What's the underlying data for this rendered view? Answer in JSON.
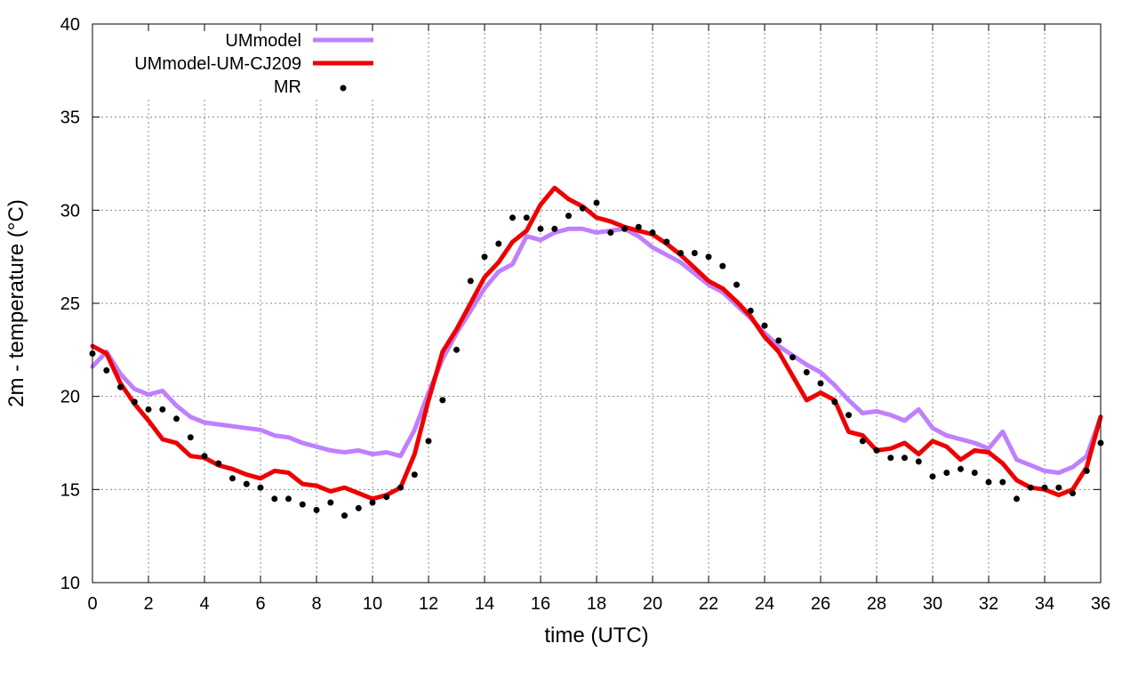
{
  "chart_data": {
    "type": "line",
    "title": "",
    "xlabel": "time (UTC)",
    "ylabel": "2m - temperature (°C)",
    "xlim": [
      0,
      36
    ],
    "ylim": [
      10,
      40
    ],
    "xticks": [
      0,
      2,
      4,
      6,
      8,
      10,
      12,
      14,
      16,
      18,
      20,
      22,
      24,
      26,
      28,
      30,
      32,
      34,
      36
    ],
    "yticks": [
      10,
      15,
      20,
      25,
      30,
      35,
      40
    ],
    "grid": true,
    "legend_position": "top-left",
    "series": [
      {
        "name": "UMmodel",
        "style": "line",
        "color": "#bf80ff",
        "x": [
          0,
          0.5,
          1,
          1.5,
          2,
          2.5,
          3,
          3.5,
          4,
          4.5,
          5,
          5.5,
          6,
          6.5,
          7,
          7.5,
          8,
          8.5,
          9,
          9.5,
          10,
          10.5,
          11,
          11.5,
          12,
          12.5,
          13,
          13.5,
          14,
          14.5,
          15,
          15.5,
          16,
          16.5,
          17,
          17.5,
          18,
          18.5,
          19,
          19.5,
          20,
          20.5,
          21,
          21.5,
          22,
          22.5,
          23,
          23.5,
          24,
          24.5,
          25,
          25.5,
          26,
          26.5,
          27,
          27.5,
          28,
          28.5,
          29,
          29.5,
          30,
          30.5,
          31,
          31.5,
          32,
          32.5,
          33,
          33.5,
          34,
          34.5,
          35,
          35.5,
          36
        ],
        "y": [
          21.6,
          22.4,
          21.2,
          20.4,
          20.1,
          20.3,
          19.5,
          18.9,
          18.6,
          18.5,
          18.4,
          18.3,
          18.2,
          17.9,
          17.8,
          17.5,
          17.3,
          17.1,
          17.0,
          17.1,
          16.9,
          17.0,
          16.8,
          18.2,
          20.2,
          22.0,
          23.4,
          24.6,
          25.8,
          26.7,
          27.1,
          28.6,
          28.4,
          28.8,
          29.0,
          29.0,
          28.8,
          28.9,
          29.0,
          28.6,
          28.0,
          27.6,
          27.2,
          26.6,
          26.0,
          25.6,
          24.9,
          24.2,
          23.4,
          22.7,
          22.2,
          21.7,
          21.3,
          20.6,
          19.8,
          19.1,
          19.2,
          19.0,
          18.7,
          19.3,
          18.3,
          17.9,
          17.7,
          17.5,
          17.2,
          18.1,
          16.6,
          16.3,
          16.0,
          15.9,
          16.2,
          16.8,
          18.9
        ]
      },
      {
        "name": "UMmodel-UM-CJ209",
        "style": "line",
        "color": "#ee0000",
        "x": [
          0,
          0.5,
          1,
          1.5,
          2,
          2.5,
          3,
          3.5,
          4,
          4.5,
          5,
          5.5,
          6,
          6.5,
          7,
          7.5,
          8,
          8.5,
          9,
          9.5,
          10,
          10.5,
          11,
          11.5,
          12,
          12.5,
          13,
          13.5,
          14,
          14.5,
          15,
          15.5,
          16,
          16.5,
          17,
          17.5,
          18,
          18.5,
          19,
          19.5,
          20,
          20.5,
          21,
          21.5,
          22,
          22.5,
          23,
          23.5,
          24,
          24.5,
          25,
          25.5,
          26,
          26.5,
          27,
          27.5,
          28,
          28.5,
          29,
          29.5,
          30,
          30.5,
          31,
          31.5,
          32,
          32.5,
          33,
          33.5,
          34,
          34.5,
          35,
          35.5,
          36
        ],
        "y": [
          22.7,
          22.3,
          20.7,
          19.6,
          18.7,
          17.7,
          17.5,
          16.8,
          16.7,
          16.3,
          16.1,
          15.8,
          15.6,
          16.0,
          15.9,
          15.3,
          15.2,
          14.9,
          15.1,
          14.8,
          14.5,
          14.7,
          15.1,
          16.9,
          19.8,
          22.4,
          23.6,
          25.0,
          26.4,
          27.2,
          28.3,
          28.9,
          30.3,
          31.2,
          30.6,
          30.2,
          29.6,
          29.4,
          29.1,
          28.9,
          28.7,
          28.2,
          27.6,
          26.9,
          26.2,
          25.8,
          25.1,
          24.3,
          23.2,
          22.4,
          21.1,
          19.8,
          20.2,
          19.8,
          18.1,
          17.9,
          17.1,
          17.2,
          17.5,
          16.9,
          17.6,
          17.3,
          16.6,
          17.1,
          17.0,
          16.4,
          15.5,
          15.1,
          15.0,
          14.7,
          15.0,
          16.2,
          18.9
        ]
      },
      {
        "name": "MR",
        "style": "points",
        "color": "#000000",
        "x": [
          0,
          0.5,
          1,
          1.5,
          2,
          2.5,
          3,
          3.5,
          4,
          4.5,
          5,
          5.5,
          6,
          6.5,
          7,
          7.5,
          8,
          8.5,
          9,
          9.5,
          10,
          10.5,
          11,
          11.5,
          12,
          12.5,
          13,
          13.5,
          14,
          14.5,
          15,
          15.5,
          16,
          16.5,
          17,
          17.5,
          18,
          18.5,
          19,
          19.5,
          20,
          20.5,
          21,
          21.5,
          22,
          22.5,
          23,
          23.5,
          24,
          24.5,
          25,
          25.5,
          26,
          26.5,
          27,
          27.5,
          28,
          28.5,
          29,
          29.5,
          30,
          30.5,
          31,
          31.5,
          32,
          32.5,
          33,
          33.5,
          34,
          34.5,
          35,
          35.5,
          36
        ],
        "y": [
          22.3,
          21.4,
          20.5,
          19.7,
          19.3,
          19.3,
          18.8,
          17.8,
          16.8,
          16.4,
          15.6,
          15.3,
          15.1,
          14.5,
          14.5,
          14.2,
          13.9,
          14.3,
          13.6,
          14.0,
          14.3,
          14.6,
          15.1,
          15.8,
          17.6,
          19.8,
          22.5,
          26.2,
          27.5,
          28.2,
          29.6,
          29.6,
          29.0,
          29.0,
          29.7,
          30.1,
          30.4,
          28.8,
          29.0,
          29.1,
          28.8,
          28.3,
          27.7,
          27.7,
          27.5,
          27.0,
          26.0,
          24.6,
          23.8,
          23.0,
          22.1,
          21.3,
          20.7,
          19.7,
          19.0,
          17.6,
          17.1,
          16.7,
          16.7,
          16.5,
          15.7,
          15.9,
          16.1,
          15.9,
          15.4,
          15.4,
          14.5,
          15.1,
          15.1,
          15.1,
          14.8,
          16.0,
          17.5
        ]
      }
    ]
  }
}
